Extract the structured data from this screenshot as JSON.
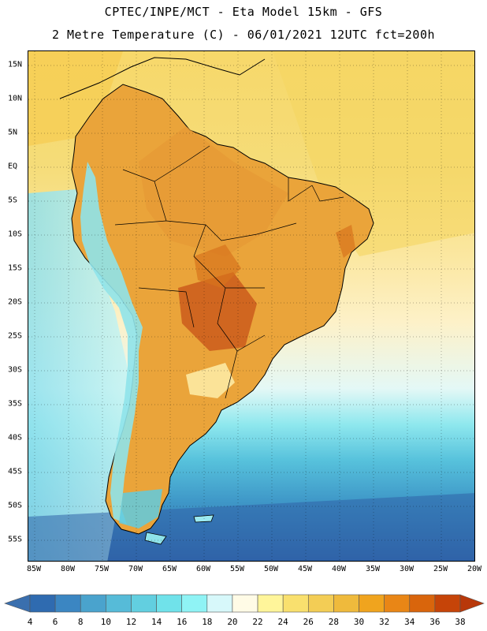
{
  "header": {
    "line1": "CPTEC/INPE/MCT -  Eta Model 15km - GFS",
    "line2": "2 Metre Temperature (C) - 06/01/2021 12UTC fct=200h"
  },
  "map": {
    "lat_labels": [
      "15N",
      "10N",
      "5N",
      "EQ",
      "5S",
      "10S",
      "15S",
      "20S",
      "25S",
      "30S",
      "35S",
      "40S",
      "45S",
      "50S",
      "55S"
    ],
    "lon_labels": [
      "85W",
      "80W",
      "75W",
      "70W",
      "65W",
      "60W",
      "55W",
      "50W",
      "45W",
      "40W",
      "35W",
      "30W",
      "25W",
      "20W"
    ],
    "lat_values": [
      15,
      10,
      5,
      0,
      -5,
      -10,
      -15,
      -20,
      -25,
      -30,
      -35,
      -40,
      -45,
      -50,
      -55
    ],
    "lon_values": [
      -85,
      -80,
      -75,
      -70,
      -65,
      -60,
      -55,
      -50,
      -45,
      -40,
      -35,
      -30,
      -25,
      -20
    ]
  },
  "legend": {
    "labels": [
      "4",
      "6",
      "8",
      "10",
      "12",
      "14",
      "16",
      "18",
      "20",
      "22",
      "24",
      "26",
      "28",
      "30",
      "32",
      "34",
      "36",
      "38"
    ],
    "colors": [
      "#2f6bb0",
      "#3b86c2",
      "#4aa3cd",
      "#56bbd8",
      "#62cfe0",
      "#70e2ea",
      "#8ff3f5",
      "#d7f8fa",
      "#fffbe6",
      "#fff59a",
      "#f9e06e",
      "#f3cd55",
      "#efba3c",
      "#f0a41e",
      "#e98616",
      "#d9650c",
      "#c64408"
    ],
    "low_color": "#3a6fae",
    "high_color": "#b8380a"
  }
}
